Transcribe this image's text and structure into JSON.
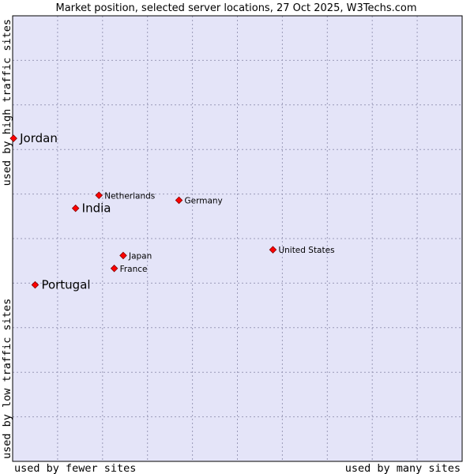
{
  "chart_data": {
    "type": "scatter",
    "title": "Market position, selected server locations, 27 Oct 2025, W3Techs.com",
    "xlabel_left": "used by fewer sites",
    "xlabel_right": "used by many sites",
    "ylabel_top": "used by high traffic sites",
    "ylabel_bottom": "used by low traffic sites",
    "xlim": [
      0,
      100
    ],
    "ylim": [
      0,
      100
    ],
    "grid": true,
    "colors": {
      "plot_bg": "#e4e4f8",
      "marker": "#ff0000",
      "frame": "#000000"
    },
    "points": [
      {
        "name": "Jordan",
        "x": 0.2,
        "y": 72.5,
        "highlight": true
      },
      {
        "name": "India",
        "x": 14.0,
        "y": 56.8,
        "highlight": true
      },
      {
        "name": "Portugal",
        "x": 5.0,
        "y": 39.6,
        "highlight": true
      },
      {
        "name": "Netherlands",
        "x": 19.2,
        "y": 59.7,
        "highlight": false
      },
      {
        "name": "Germany",
        "x": 37.0,
        "y": 58.6,
        "highlight": false
      },
      {
        "name": "United States",
        "x": 57.9,
        "y": 47.5,
        "highlight": false
      },
      {
        "name": "Japan",
        "x": 24.6,
        "y": 46.2,
        "highlight": false
      },
      {
        "name": "France",
        "x": 22.6,
        "y": 43.3,
        "highlight": false
      }
    ]
  }
}
